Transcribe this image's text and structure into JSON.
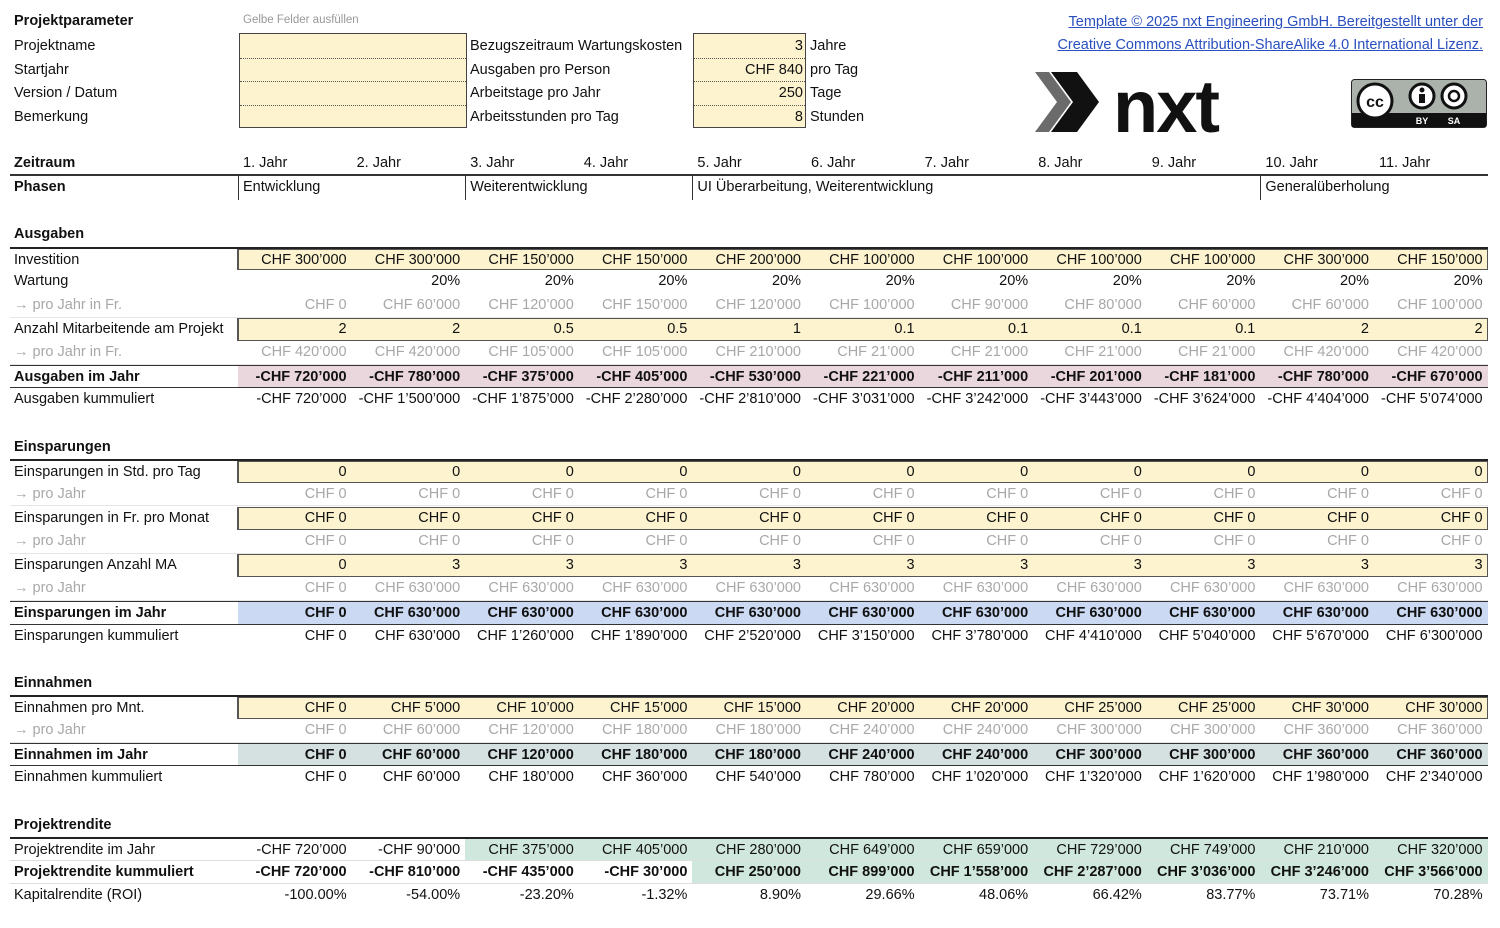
{
  "params": {
    "title": "Projektparameter",
    "hint": "Gelbe Felder ausfüllen",
    "left_labels": [
      "Projektname",
      "Startjahr",
      "Version / Datum",
      "Bemerkung"
    ],
    "left_values": [
      "",
      "",
      "",
      ""
    ],
    "right_labels": [
      "Bezugszeitraum Wartungskosten",
      "Ausgaben pro Person",
      "Arbeitstage pro Jahr",
      "Arbeitsstunden pro Tag"
    ],
    "right_values": [
      "3",
      "CHF 840",
      "250",
      "8"
    ],
    "right_units": [
      "Jahre",
      "pro Tag",
      "Tage",
      "Stunden"
    ]
  },
  "license": {
    "line1": "Template ©  2025 nxt Engineering GmbH. Bereitgestellt unter der",
    "line2": "Creative Commons Attribution-ShareAlike 4.0 International Lizenz.",
    "logo_text": "nxt",
    "badge": {
      "cc": "cc",
      "by": "BY",
      "sa": "SA"
    }
  },
  "colors": {
    "input": "#fdf3cf",
    "expenses_total": "#ead7de",
    "savings_total": "#cbd9f3",
    "income_total": "#d5e1e0",
    "positive_return": "#cfe7dc",
    "link": "#2a4fbf"
  },
  "timeline": {
    "label": "Zeitraum",
    "years": [
      "1. Jahr",
      "2. Jahr",
      "3. Jahr",
      "4. Jahr",
      "5. Jahr",
      "6. Jahr",
      "7. Jahr",
      "8. Jahr",
      "9. Jahr",
      "10. Jahr",
      "11. Jahr"
    ],
    "phases_label": "Phasen",
    "phases": [
      {
        "name": "Entwicklung",
        "start_year": 1
      },
      {
        "name": "Weiterentwicklung",
        "start_year": 3
      },
      {
        "name": "UI Überarbeitung, Weiterentwicklung",
        "start_year": 5
      },
      {
        "name": "Generalüberholung",
        "start_year": 10
      }
    ]
  },
  "sections": [
    {
      "title": "Ausgaben",
      "rows": [
        {
          "label": "Investition",
          "kind": "input",
          "values": [
            "CHF 300’000",
            "CHF 300’000",
            "CHF 150’000",
            "CHF 150’000",
            "CHF 200’000",
            "CHF 100’000",
            "CHF 100’000",
            "CHF 100’000",
            "CHF 100’000",
            "CHF 300’000",
            "CHF 150’000"
          ]
        },
        {
          "label": "Wartung",
          "kind": "plain",
          "values": [
            "",
            "20%",
            "20%",
            "20%",
            "20%",
            "20%",
            "20%",
            "20%",
            "20%",
            "20%",
            "20%"
          ]
        },
        {
          "label": "→ pro Jahr in Fr.",
          "kind": "derived",
          "values": [
            "CHF 0",
            "CHF 60’000",
            "CHF 120’000",
            "CHF 150’000",
            "CHF 120’000",
            "CHF 100’000",
            "CHF 90’000",
            "CHF 80’000",
            "CHF 60’000",
            "CHF 60’000",
            "CHF 100’000"
          ]
        },
        {
          "label": "Anzahl Mitarbeitende am Projekt",
          "kind": "input",
          "values": [
            "2",
            "2",
            "0.5",
            "0.5",
            "1",
            "0.1",
            "0.1",
            "0.1",
            "0.1",
            "2",
            "2"
          ]
        },
        {
          "label": "→ pro Jahr in Fr.",
          "kind": "derived",
          "values": [
            "CHF 420’000",
            "CHF 420’000",
            "CHF 105’000",
            "CHF 105’000",
            "CHF 210’000",
            "CHF 21’000",
            "CHF 21’000",
            "CHF 21’000",
            "CHF 21’000",
            "CHF 420’000",
            "CHF 420’000"
          ]
        },
        {
          "label": "Ausgaben im Jahr",
          "kind": "total",
          "color": "expenses_total",
          "values": [
            "-CHF 720’000",
            "-CHF 780’000",
            "-CHF 375’000",
            "-CHF 405’000",
            "-CHF 530’000",
            "-CHF 221’000",
            "-CHF 211’000",
            "-CHF 201’000",
            "-CHF 181’000",
            "-CHF 780’000",
            "-CHF 670’000"
          ]
        },
        {
          "label": "Ausgaben kummuliert",
          "kind": "plain",
          "values": [
            "-CHF 720’000",
            "-CHF 1’500’000",
            "-CHF 1’875’000",
            "-CHF 2’280’000",
            "-CHF 2’810’000",
            "-CHF 3’031’000",
            "-CHF 3’242’000",
            "-CHF 3’443’000",
            "-CHF 3’624’000",
            "-CHF 4’404’000",
            "-CHF 5’074’000"
          ]
        }
      ]
    },
    {
      "title": "Einsparungen",
      "rows": [
        {
          "label": "Einsparungen in Std. pro Tag",
          "kind": "input",
          "values": [
            "0",
            "0",
            "0",
            "0",
            "0",
            "0",
            "0",
            "0",
            "0",
            "0",
            "0"
          ]
        },
        {
          "label": "→ pro Jahr",
          "kind": "derived",
          "values": [
            "CHF 0",
            "CHF 0",
            "CHF 0",
            "CHF 0",
            "CHF 0",
            "CHF 0",
            "CHF 0",
            "CHF 0",
            "CHF 0",
            "CHF 0",
            "CHF 0"
          ]
        },
        {
          "label": "Einsparungen in Fr. pro Monat",
          "kind": "input",
          "values": [
            "CHF 0",
            "CHF 0",
            "CHF 0",
            "CHF 0",
            "CHF 0",
            "CHF 0",
            "CHF 0",
            "CHF 0",
            "CHF 0",
            "CHF 0",
            "CHF 0"
          ]
        },
        {
          "label": "→ pro Jahr",
          "kind": "derived",
          "values": [
            "CHF 0",
            "CHF 0",
            "CHF 0",
            "CHF 0",
            "CHF 0",
            "CHF 0",
            "CHF 0",
            "CHF 0",
            "CHF 0",
            "CHF 0",
            "CHF 0"
          ]
        },
        {
          "label": "Einsparungen Anzahl MA",
          "kind": "input",
          "values": [
            "0",
            "3",
            "3",
            "3",
            "3",
            "3",
            "3",
            "3",
            "3",
            "3",
            "3"
          ]
        },
        {
          "label": "→ pro Jahr",
          "kind": "derived",
          "values": [
            "CHF 0",
            "CHF 630’000",
            "CHF 630’000",
            "CHF 630’000",
            "CHF 630’000",
            "CHF 630’000",
            "CHF 630’000",
            "CHF 630’000",
            "CHF 630’000",
            "CHF 630’000",
            "CHF 630’000"
          ]
        },
        {
          "label": "Einsparungen im Jahr",
          "kind": "total",
          "color": "savings_total",
          "values": [
            "CHF 0",
            "CHF 630’000",
            "CHF 630’000",
            "CHF 630’000",
            "CHF 630’000",
            "CHF 630’000",
            "CHF 630’000",
            "CHF 630’000",
            "CHF 630’000",
            "CHF 630’000",
            "CHF 630’000"
          ]
        },
        {
          "label": "Einsparungen kummuliert",
          "kind": "plain",
          "values": [
            "CHF 0",
            "CHF 630’000",
            "CHF 1’260’000",
            "CHF 1’890’000",
            "CHF 2’520’000",
            "CHF 3’150’000",
            "CHF 3’780’000",
            "CHF 4’410’000",
            "CHF 5’040’000",
            "CHF 5’670’000",
            "CHF 6’300’000"
          ]
        }
      ]
    },
    {
      "title": "Einnahmen",
      "rows": [
        {
          "label": "Einnahmen pro Mnt.",
          "kind": "input",
          "values": [
            "CHF 0",
            "CHF 5’000",
            "CHF 10’000",
            "CHF 15’000",
            "CHF 15’000",
            "CHF 20’000",
            "CHF 20’000",
            "CHF 25’000",
            "CHF 25’000",
            "CHF 30’000",
            "CHF 30’000"
          ]
        },
        {
          "label": "→ pro Jahr",
          "kind": "derived",
          "values": [
            "CHF 0",
            "CHF 60’000",
            "CHF 120’000",
            "CHF 180’000",
            "CHF 180’000",
            "CHF 240’000",
            "CHF 240’000",
            "CHF 300’000",
            "CHF 300’000",
            "CHF 360’000",
            "CHF 360’000"
          ]
        },
        {
          "label": "Einnahmen im Jahr",
          "kind": "total",
          "color": "income_total",
          "values": [
            "CHF 0",
            "CHF 60’000",
            "CHF 120’000",
            "CHF 180’000",
            "CHF 180’000",
            "CHF 240’000",
            "CHF 240’000",
            "CHF 300’000",
            "CHF 300’000",
            "CHF 360’000",
            "CHF 360’000"
          ]
        },
        {
          "label": "Einnahmen kummuliert",
          "kind": "plain",
          "values": [
            "CHF 0",
            "CHF 60’000",
            "CHF 180’000",
            "CHF 360’000",
            "CHF 540’000",
            "CHF 780’000",
            "CHF 1’020’000",
            "CHF 1’320’000",
            "CHF 1’620’000",
            "CHF 1’980’000",
            "CHF 2’340’000"
          ]
        }
      ]
    },
    {
      "title": "Projektrendite",
      "rows": [
        {
          "label": "Projektrendite im Jahr",
          "kind": "return",
          "values": [
            "-CHF 720’000",
            "-CHF 90’000",
            "CHF 375’000",
            "CHF 405’000",
            "CHF 280’000",
            "CHF 649’000",
            "CHF 659’000",
            "CHF 729’000",
            "CHF 749’000",
            "CHF 210’000",
            "CHF 320’000"
          ]
        },
        {
          "label": "Projektrendite kummuliert",
          "kind": "return-bold",
          "values": [
            "-CHF 720’000",
            "-CHF 810’000",
            "-CHF 435’000",
            "-CHF 30’000",
            "CHF 250’000",
            "CHF 899’000",
            "CHF 1’558’000",
            "CHF 2’287’000",
            "CHF 3’036’000",
            "CHF 3’246’000",
            "CHF 3’566’000"
          ]
        },
        {
          "label": "Kapitalrendite (ROI)",
          "kind": "plain",
          "values": [
            "-100.00%",
            "-54.00%",
            "-23.20%",
            "-1.32%",
            "8.90%",
            "29.66%",
            "48.06%",
            "66.42%",
            "83.77%",
            "73.71%",
            "70.28%"
          ]
        }
      ]
    }
  ]
}
